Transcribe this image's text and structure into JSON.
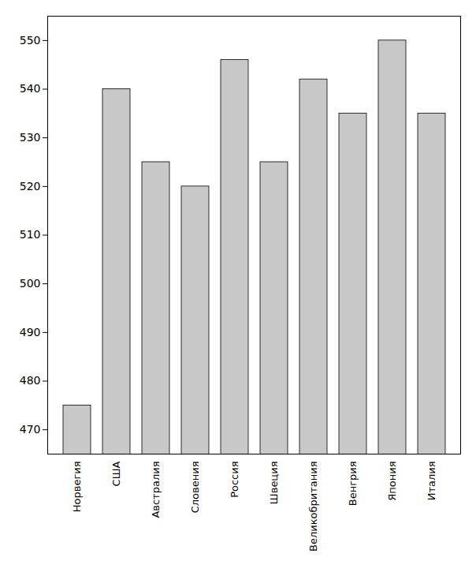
{
  "chart_data": {
    "type": "bar",
    "categories": [
      "Норвегия",
      "США",
      "Австралия",
      "Словения",
      "Россия",
      "Швеция",
      "Великобритания",
      "Венгрия",
      "Япония",
      "Италия"
    ],
    "values": [
      475,
      540,
      525,
      520,
      546,
      525,
      542,
      535,
      550,
      535
    ],
    "color": "#c8c8c8",
    "ylim": [
      465,
      555
    ],
    "yticks": [
      470,
      480,
      490,
      500,
      510,
      520,
      530,
      540,
      550
    ],
    "grid": false
  }
}
